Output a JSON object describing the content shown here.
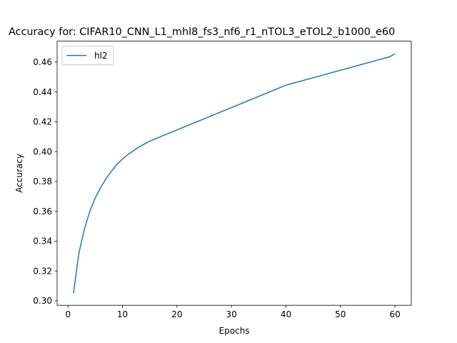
{
  "chart_data": {
    "type": "line",
    "title": "Accuracy for: CIFAR10_CNN_L1_mhl8_fs3_nf6_r1_nTOL3_eTOL2_b1000_e60",
    "xlabel": "Epochs",
    "ylabel": "Accuracy",
    "xlim": [
      -2,
      63
    ],
    "ylim": [
      0.297,
      0.474
    ],
    "xticks": [
      0,
      10,
      20,
      30,
      40,
      50,
      60
    ],
    "yticks": [
      0.3,
      0.32,
      0.34,
      0.36,
      0.38,
      0.4,
      0.42,
      0.44,
      0.46
    ],
    "xtick_labels": [
      "0",
      "10",
      "20",
      "30",
      "40",
      "50",
      "60"
    ],
    "ytick_labels": [
      "0.30",
      "0.32",
      "0.34",
      "0.36",
      "0.38",
      "0.40",
      "0.42",
      "0.44",
      "0.46"
    ],
    "grid": false,
    "legend_position": "top-left",
    "series": [
      {
        "name": "hl2",
        "color": "#1f77b4",
        "x": [
          1,
          2,
          3,
          4,
          5,
          6,
          7,
          8,
          9,
          10,
          11,
          12,
          13,
          14,
          15,
          16,
          17,
          18,
          19,
          20,
          21,
          22,
          23,
          24,
          25,
          26,
          27,
          28,
          29,
          30,
          31,
          32,
          33,
          34,
          35,
          36,
          37,
          38,
          39,
          40,
          41,
          42,
          43,
          44,
          45,
          46,
          47,
          48,
          49,
          50,
          51,
          52,
          53,
          54,
          55,
          56,
          57,
          58,
          59,
          60
        ],
        "values": [
          0.305,
          0.332,
          0.348,
          0.36,
          0.369,
          0.376,
          0.382,
          0.387,
          0.3915,
          0.395,
          0.398,
          0.4005,
          0.403,
          0.405,
          0.407,
          0.4085,
          0.41,
          0.4115,
          0.413,
          0.4145,
          0.416,
          0.4175,
          0.419,
          0.4205,
          0.422,
          0.4235,
          0.425,
          0.4265,
          0.428,
          0.4295,
          0.431,
          0.4325,
          0.434,
          0.4355,
          0.437,
          0.4385,
          0.44,
          0.4415,
          0.443,
          0.4445,
          0.4455,
          0.4465,
          0.4475,
          0.4485,
          0.4495,
          0.4505,
          0.4515,
          0.4525,
          0.4535,
          0.4545,
          0.4555,
          0.4565,
          0.4575,
          0.4585,
          0.4595,
          0.4605,
          0.4615,
          0.4625,
          0.4635,
          0.4655
        ]
      }
    ]
  }
}
